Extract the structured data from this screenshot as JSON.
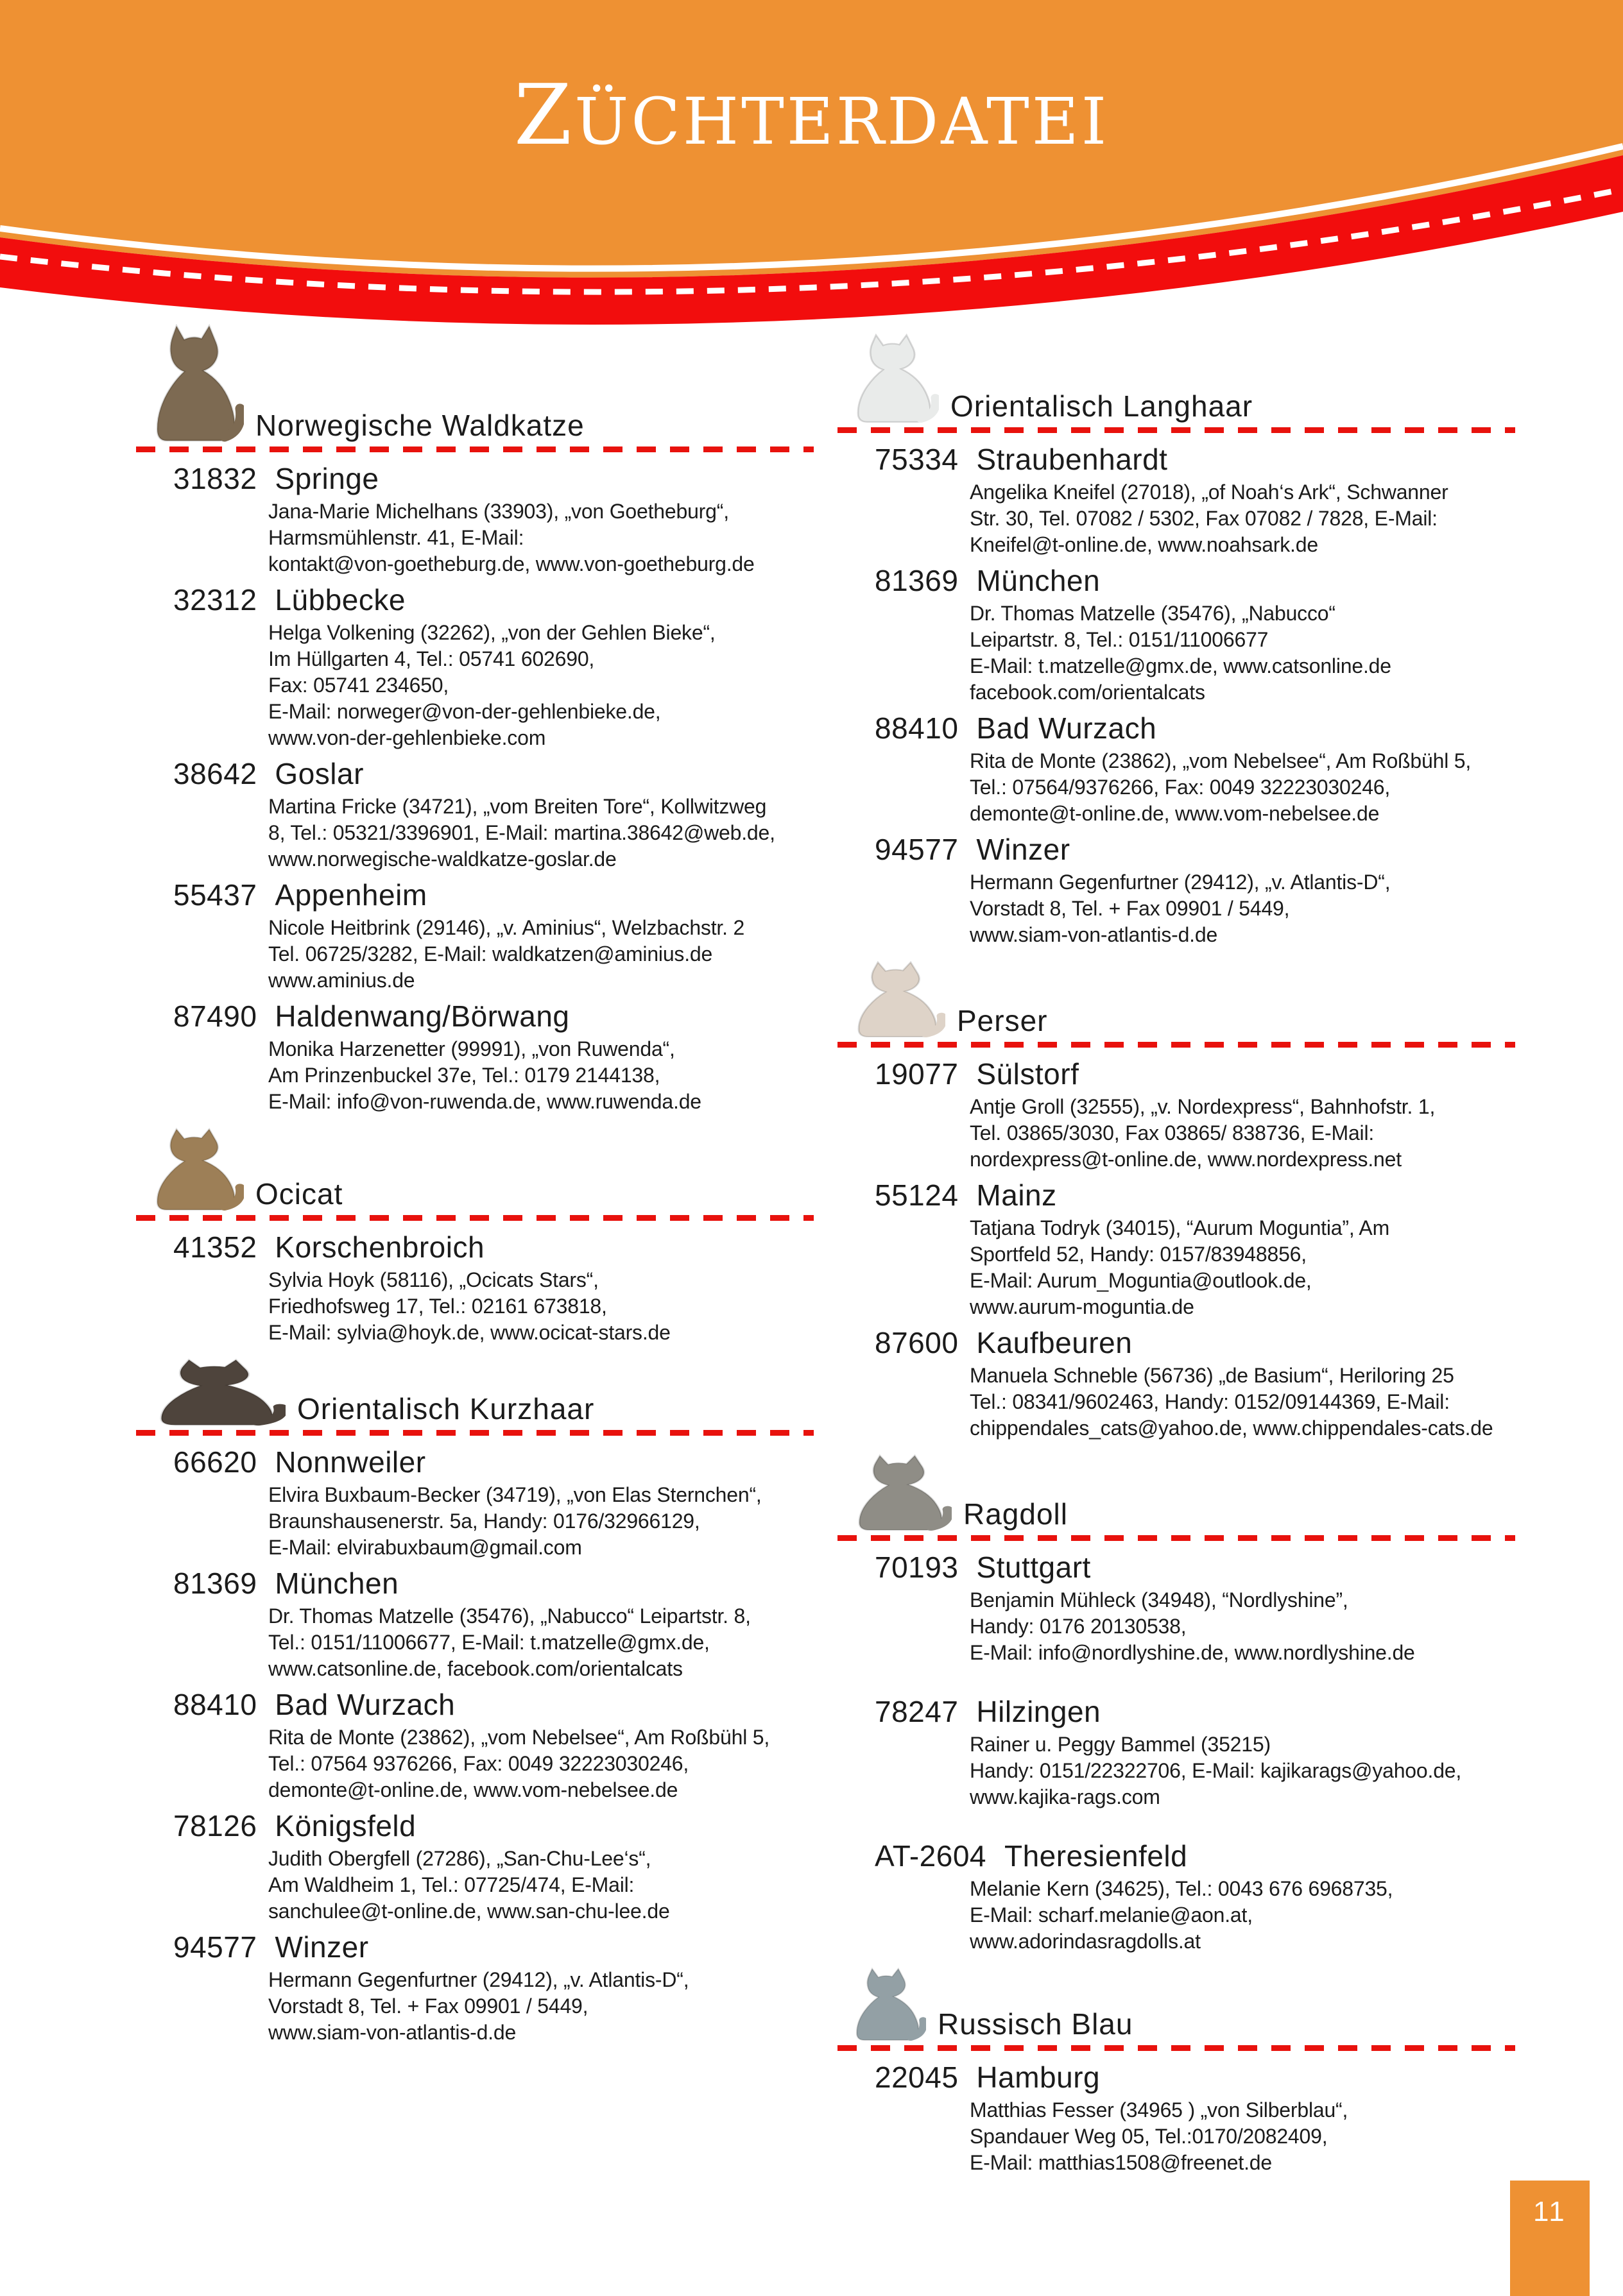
{
  "header": {
    "title": "ZÜCHTERDATEI",
    "title_initial": "Z",
    "title_rest": "ÜCHTERDATEI"
  },
  "footer": {
    "page_number": "11"
  },
  "colors": {
    "header_orange": "#ee9133",
    "ribbon_red": "#f20d0d",
    "divider_red": "#e8120d",
    "text": "#1b1b1b",
    "title_white": "#ffffff"
  },
  "columns": [
    {
      "sections": [
        {
          "breed": "Norwegische Waldkatze",
          "slug": "norwegische-waldkatze",
          "icon": "norwegian-forest-cat-photo",
          "icon_color": "#7d6a52",
          "entries": [
            {
              "plz": "31832",
              "city": "Springe",
              "lines": [
                "Jana-Marie Michelhans (33903), „von Goetheburg“,",
                "Harmsmühlenstr. 41, E-Mail:",
                "kontakt@von-goetheburg.de, www.von-goetheburg.de"
              ]
            },
            {
              "plz": "32312",
              "city": "Lübbecke",
              "lines": [
                "Helga Volkening (32262), „von der Gehlen Bieke“,",
                "Im Hüllgarten 4, Tel.: 05741 602690,",
                "Fax: 05741 234650,",
                "E-Mail: norweger@von-der-gehlenbieke.de,",
                "www.von-der-gehlenbieke.com"
              ]
            },
            {
              "plz": "38642",
              "city": "Goslar",
              "lines": [
                "Martina Fricke (34721), „vom Breiten Tore“, Kollwitzweg",
                "8, Tel.: 05321/3396901, E-Mail: martina.38642@web.de,",
                "www.norwegische-waldkatze-goslar.de"
              ]
            },
            {
              "plz": "55437",
              "city": "Appenheim",
              "lines": [
                "Nicole Heitbrink (29146), „v. Aminius“, Welzbachstr. 2",
                "Tel. 06725/3282, E-Mail: waldkatzen@aminius.de",
                "www.aminius.de"
              ]
            },
            {
              "plz": "87490",
              "city": "Haldenwang/Börwang",
              "lines": [
                "Monika Harzenetter (99991), „von Ruwenda“,",
                "Am Prinzenbuckel 37e, Tel.: 0179 2144138,",
                "E-Mail: info@von-ruwenda.de, www.ruwenda.de"
              ]
            }
          ]
        },
        {
          "breed": "Ocicat",
          "slug": "ocicat",
          "icon": "ocicat-photo",
          "icon_color": "#9d7f57",
          "entries": [
            {
              "plz": "41352",
              "city": "Korschenbroich",
              "lines": [
                "Sylvia Hoyk (58116), „Ocicats Stars“,",
                "Friedhofsweg 17, Tel.: 02161 673818,",
                "E-Mail: sylvia@hoyk.de, www.ocicat-stars.de"
              ]
            }
          ]
        },
        {
          "breed": "Orientalisch Kurzhaar",
          "slug": "orientalisch-kurzhaar",
          "icon": "oriental-shorthair-photo",
          "icon_color": "#4e443c",
          "entries": [
            {
              "plz": "66620",
              "city": "Nonnweiler",
              "lines": [
                "Elvira Buxbaum-Becker (34719), „von Elas Sternchen“,",
                "Braunshausenerstr. 5a, Handy: 0176/32966129,",
                "E-Mail: elvirabuxbaum@gmail.com"
              ]
            },
            {
              "plz": "81369",
              "city": "München",
              "lines": [
                "Dr. Thomas Matzelle (35476), „Nabucco“ Leipartstr. 8,",
                "Tel.: 0151/11006677, E-Mail: t.matzelle@gmx.de,",
                "www.catsonline.de, facebook.com/orientalcats"
              ]
            },
            {
              "plz": "88410",
              "city": "Bad Wurzach",
              "lines": [
                "Rita de Monte (23862), „vom Nebelsee“, Am Roßbühl 5,",
                "Tel.: 07564 9376266, Fax: 0049 32223030246,",
                "demonte@t-online.de, www.vom-nebelsee.de"
              ]
            },
            {
              "plz": "78126",
              "city": "Königsfeld",
              "lines": [
                "Judith Obergfell (27286), „San-Chu-Lee‘s“,",
                "Am Waldheim 1, Tel.: 07725/474, E-Mail:",
                "sanchulee@t-online.de, www.san-chu-lee.de"
              ]
            },
            {
              "plz": "94577",
              "city": "Winzer",
              "lines": [
                "Hermann Gegenfurtner (29412), „v. Atlantis-D“,",
                "Vorstadt 8, Tel. + Fax 09901 / 5449,",
                "www.siam-von-atlantis-d.de"
              ]
            }
          ]
        }
      ]
    },
    {
      "sections": [
        {
          "breed": "Orientalisch Langhaar",
          "slug": "orientalisch-langhaar",
          "icon": "oriental-longhair-photo",
          "icon_color": "#e9ebea",
          "entries": [
            {
              "plz": "75334",
              "city": "Straubenhardt",
              "lines": [
                "Angelika Kneifel (27018), „of Noah‘s Ark“, Schwanner",
                "Str. 30, Tel. 07082 / 5302, Fax 07082 / 7828, E-Mail:",
                "Kneifel@t-online.de, www.noahsark.de"
              ]
            },
            {
              "plz": "81369",
              "city": "München",
              "lines": [
                "Dr. Thomas Matzelle (35476), „Nabucco“",
                "Leipartstr. 8, Tel.: 0151/11006677",
                "E-Mail: t.matzelle@gmx.de, www.catsonline.de",
                "facebook.com/orientalcats"
              ]
            },
            {
              "plz": "88410",
              "city": "Bad Wurzach",
              "lines": [
                "Rita de Monte (23862), „vom Nebelsee“, Am Roßbühl 5,",
                "Tel.: 07564/9376266, Fax: 0049 32223030246,",
                "demonte@t-online.de, www.vom-nebelsee.de"
              ]
            },
            {
              "plz": "94577",
              "city": "Winzer",
              "lines": [
                "Hermann Gegenfurtner (29412), „v. Atlantis-D“,",
                "Vorstadt 8, Tel. + Fax 09901 / 5449,",
                "www.siam-von-atlantis-d.de"
              ]
            }
          ]
        },
        {
          "breed": "Perser",
          "slug": "perser",
          "icon": "persian-cat-photo",
          "icon_color": "#ded3c8",
          "entries": [
            {
              "plz": "19077",
              "city": "Sülstorf",
              "lines": [
                "Antje Groll (32555), „v. Nordexpress“, Bahnhofstr. 1,",
                "Tel. 03865/3030, Fax 03865/ 838736, E-Mail:",
                "nordexpress@t-online.de, www.nordexpress.net"
              ]
            },
            {
              "plz": "55124",
              "city": "Mainz",
              "lines": [
                "Tatjana Todryk (34015), “Aurum Moguntia”, Am",
                "Sportfeld 52, Handy: 0157/83948856,",
                "E-Mail: Aurum_Moguntia@outlook.de,",
                "www.aurum-moguntia.de"
              ]
            },
            {
              "plz": "87600",
              "city": "Kaufbeuren",
              "lines": [
                "Manuela Schneble (56736) „de Basium“, Heriloring 25",
                "Tel.: 08341/9602463, Handy: 0152/09144369, E-Mail:",
                "chippendales_cats@yahoo.de, www.chippendales-cats.de"
              ]
            }
          ]
        },
        {
          "breed": "Ragdoll",
          "slug": "ragdoll",
          "icon": "ragdoll-cat-photo",
          "icon_color": "#8f8d86",
          "entries": [
            {
              "plz": "70193",
              "city": "Stuttgart",
              "lines": [
                "Benjamin Mühleck (34948), “Nordlyshine”,",
                "Handy: 0176 20130538,",
                "E-Mail: info@nordlyshine.de, www.nordlyshine.de"
              ]
            },
            {
              "plz": "78247",
              "city": "Hilzingen",
              "extra_gap": true,
              "lines": [
                "Rainer u. Peggy Bammel (35215)",
                "Handy: 0151/22322706, E-Mail: kajikarags@yahoo.de,",
                "www.kajika-rags.com"
              ]
            },
            {
              "plz": "AT-2604",
              "city": "Theresienfeld",
              "extra_gap": true,
              "lines": [
                "Melanie Kern (34625), Tel.: 0043 676 6968735,",
                "E-Mail: scharf.melanie@aon.at,",
                "www.adorindasragdolls.at"
              ]
            }
          ]
        },
        {
          "breed": "Russisch Blau",
          "slug": "russisch-blau",
          "icon": "russian-blue-cat-photo",
          "icon_color": "#93a0a5",
          "entries": [
            {
              "plz": "22045",
              "city": "Hamburg",
              "lines": [
                "Matthias Fesser (34965 ) „von Silberblau“,",
                "Spandauer Weg 05, Tel.:0170/2082409,",
                "E-Mail: matthias1508@freenet.de"
              ]
            }
          ]
        }
      ]
    }
  ]
}
